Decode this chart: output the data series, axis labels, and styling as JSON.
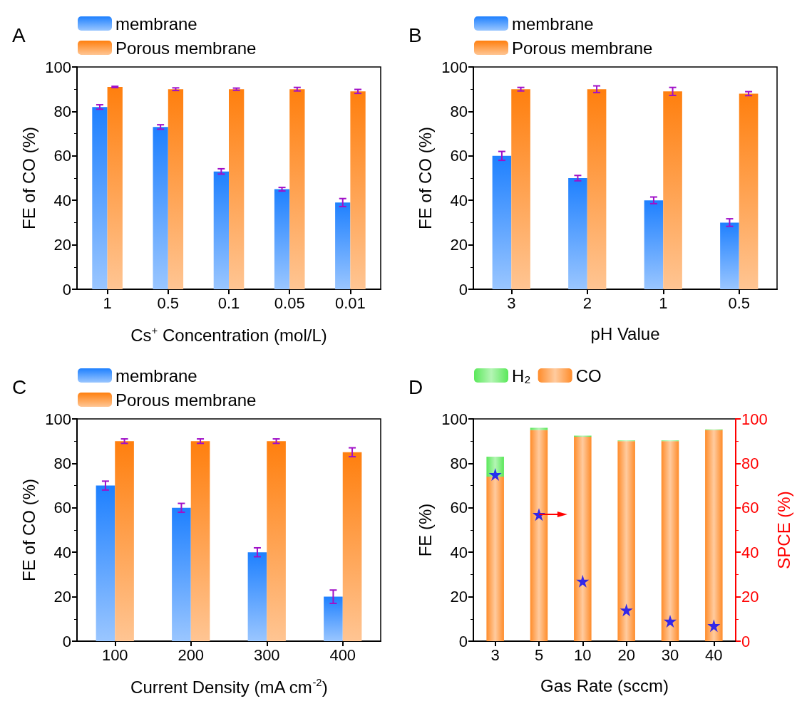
{
  "chart_data": [
    {
      "type": "bar",
      "title": "A",
      "xlabel": "Cs$^{+}$ Concentration (mol/L)",
      "ylabel": "FE of CO (%)",
      "categories": [
        "1",
        "0.5",
        "0.1",
        "0.05",
        "0.01"
      ],
      "series": [
        {
          "name": "membrane",
          "color": "#1e80ff",
          "values": [
            82,
            73,
            53,
            45,
            39
          ],
          "errors": [
            1,
            1,
            1.2,
            0.8,
            1.8
          ]
        },
        {
          "name": "Porous membrane",
          "color": "#ff7f0e",
          "values": [
            91,
            90,
            90,
            90,
            89
          ],
          "errors": [
            0.3,
            0.6,
            0.5,
            0.8,
            0.9
          ]
        }
      ],
      "ylim": [
        0,
        100
      ],
      "yticks": [
        0,
        20,
        40,
        60,
        80,
        100
      ],
      "grid": false,
      "legend": "top left"
    },
    {
      "type": "bar",
      "title": "B",
      "xlabel": "pH Value",
      "ylabel": "FE of CO (%)",
      "categories": [
        "3",
        "2",
        "1",
        "0.5"
      ],
      "series": [
        {
          "name": "membrane",
          "color": "#1e80ff",
          "values": [
            60,
            50,
            40,
            30
          ],
          "errors": [
            2,
            1.2,
            1.5,
            1.7
          ]
        },
        {
          "name": "Porous membrane",
          "color": "#ff7f0e",
          "values": [
            90,
            90,
            89,
            88
          ],
          "errors": [
            0.8,
            1.5,
            1.8,
            0.9
          ]
        }
      ],
      "ylim": [
        0,
        100
      ],
      "yticks": [
        0,
        20,
        40,
        60,
        80,
        100
      ],
      "grid": false,
      "legend": "top left"
    },
    {
      "type": "bar",
      "title": "C",
      "xlabel": "Current Density (mA cm$^{-2}$)",
      "ylabel": "FE of CO (%)",
      "categories": [
        "100",
        "200",
        "300",
        "400"
      ],
      "series": [
        {
          "name": "membrane",
          "color": "#1e80ff",
          "values": [
            70,
            60,
            40,
            20
          ],
          "errors": [
            2,
            2,
            2,
            3
          ]
        },
        {
          "name": "Porous membrane",
          "color": "#ff7f0e",
          "values": [
            90,
            90,
            90,
            85
          ],
          "errors": [
            1,
            1,
            1,
            2
          ]
        }
      ],
      "ylim": [
        0,
        100
      ],
      "yticks": [
        0,
        20,
        40,
        60,
        80,
        100
      ],
      "grid": false,
      "legend": "top left"
    },
    {
      "type": "bar",
      "title": "D",
      "xlabel": "Gas Rate (sccm)",
      "ylabel": "FE (%)",
      "y2label": "SPCE (%)",
      "categories": [
        "3",
        "5",
        "10",
        "20",
        "30",
        "40"
      ],
      "stacked": true,
      "series": [
        {
          "name": "CO",
          "color": "#ff8c2a",
          "values": [
            74,
            95,
            92,
            90,
            90,
            95
          ]
        },
        {
          "name": "H₂",
          "color": "#5ae85a",
          "values": [
            9,
            1,
            0.5,
            0.3,
            0.3,
            0.3
          ]
        },
        {
          "type": "scatter",
          "axis": "y2",
          "color": "#0000ff",
          "marker": "star",
          "x": [
            "3",
            "5",
            "10",
            "20",
            "30",
            "40"
          ],
          "values": [
            75,
            57,
            27,
            14,
            9,
            7
          ]
        }
      ],
      "ylim": [
        0,
        100
      ],
      "yticks": [
        0,
        20,
        40,
        60,
        80,
        100
      ],
      "y2lim": [
        0,
        100
      ],
      "y2ticks": [
        0,
        20,
        40,
        60,
        80,
        100
      ],
      "grid": false,
      "legend": "top left"
    }
  ]
}
